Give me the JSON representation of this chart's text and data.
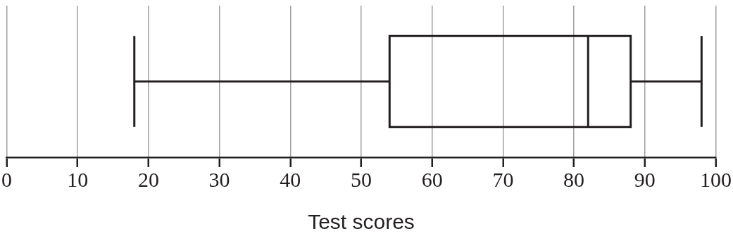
{
  "chart_data": {
    "type": "box",
    "orientation": "horizontal",
    "xlabel": "Test scores",
    "categories": [
      null
    ],
    "boxes": [
      {
        "low": 18,
        "q1": 54,
        "median": 82,
        "q3": 88,
        "high": 98
      }
    ],
    "color": "#231f20",
    "xlim": [
      0,
      100
    ],
    "xticks": [
      0,
      10,
      20,
      30,
      40,
      50,
      60,
      70,
      80,
      90,
      100
    ],
    "grid": "x",
    "tick_labels": "x"
  }
}
